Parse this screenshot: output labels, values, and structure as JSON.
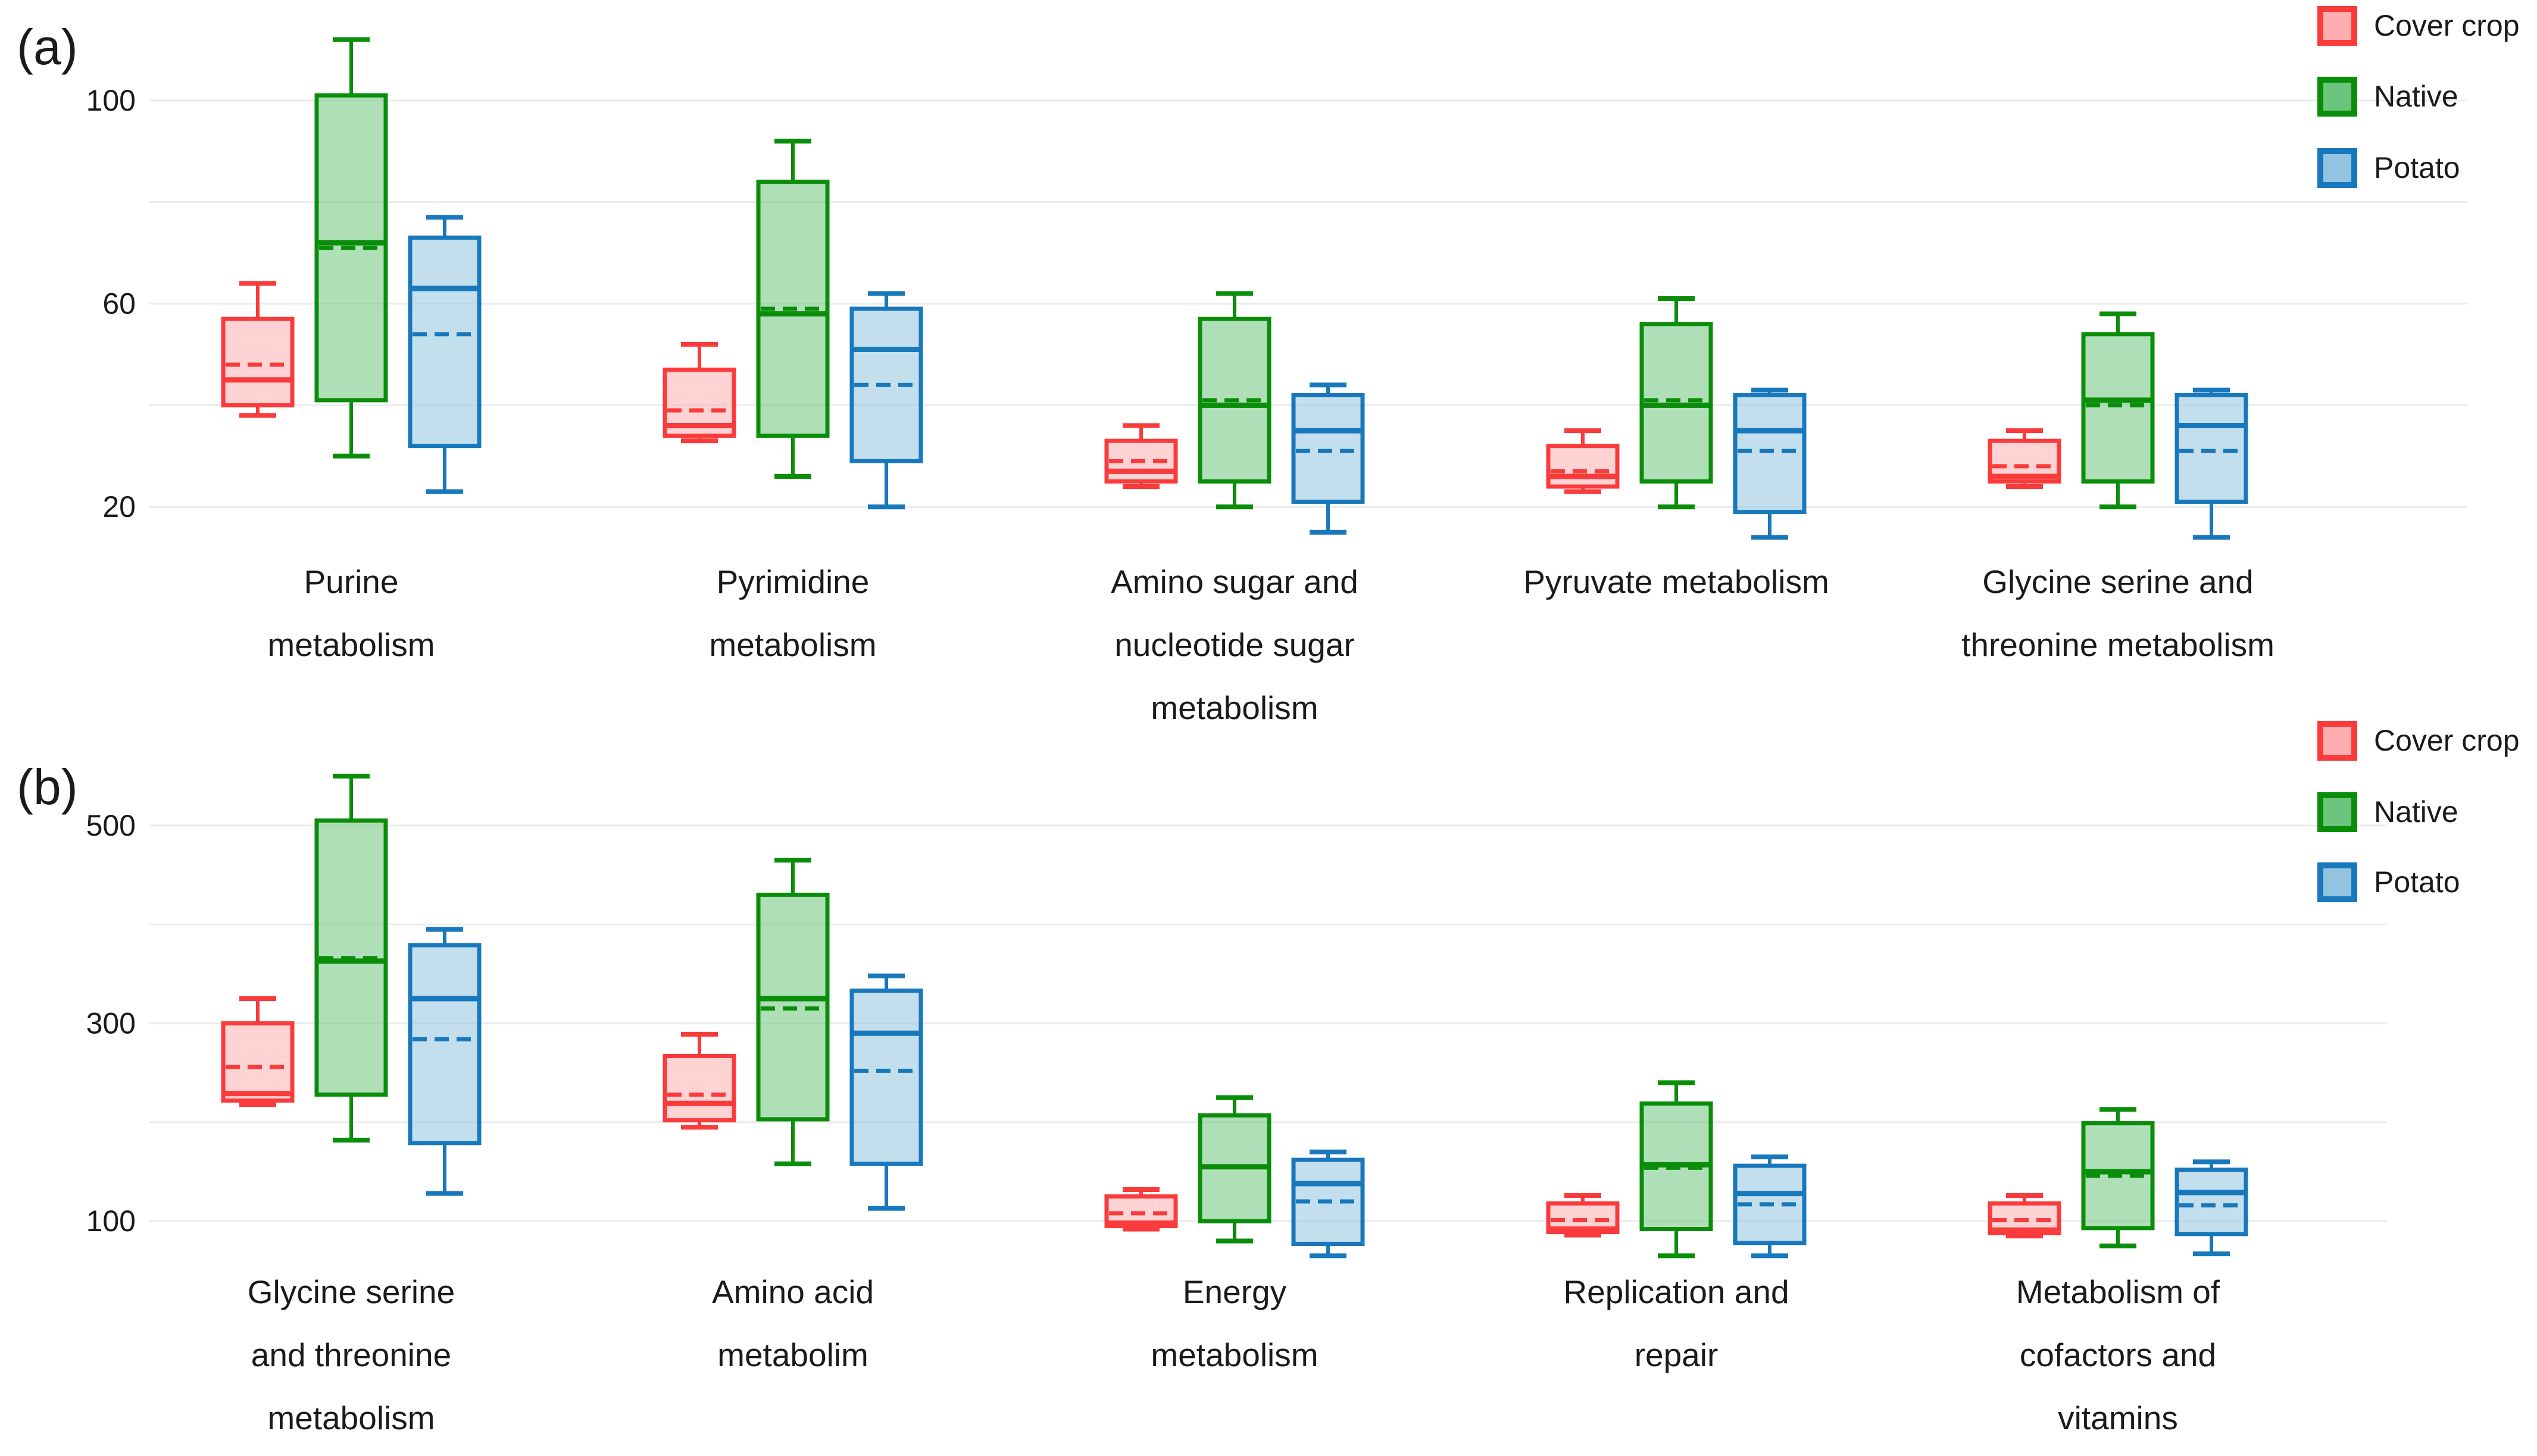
{
  "figure": {
    "background": "#ffffff",
    "gridline_color": "#ebebeb",
    "text_color": "#1a1a1a"
  },
  "legend": {
    "position": "top-right",
    "items": [
      {
        "label": "Cover crop",
        "stroke": "#fa3b3c",
        "fill": "#ffaeb0"
      },
      {
        "label": "Native",
        "stroke": "#0a8e0a",
        "fill": "#6cc57c"
      },
      {
        "label": "Potato",
        "stroke": "#1878bc",
        "fill": "#92c4e0"
      }
    ]
  },
  "chart_data": [
    {
      "type": "box",
      "panel": "(a)",
      "yticks": [
        100,
        60,
        20
      ],
      "gridlines": [
        100,
        80,
        60,
        40,
        20
      ],
      "ylim": [
        8,
        116
      ],
      "grid": true,
      "legend_position": "top-right",
      "categories": [
        [
          "Purine",
          "metabolism"
        ],
        [
          "Pyrimidine",
          "metabolism"
        ],
        [
          "Amino sugar and",
          "nucleotide sugar",
          "metabolism"
        ],
        [
          "Pyruvate metabolism"
        ],
        [
          "Glycine serine and",
          "threonine metabolism"
        ]
      ],
      "series": [
        {
          "name": "Cover crop",
          "boxes": [
            {
              "min": 38,
              "q1": 40,
              "median": 45,
              "mean": 48,
              "q3": 57,
              "max": 64
            },
            {
              "min": 33,
              "q1": 34,
              "median": 36,
              "mean": 39,
              "q3": 47,
              "max": 52
            },
            {
              "min": 24,
              "q1": 25,
              "median": 27,
              "mean": 29,
              "q3": 33,
              "max": 36
            },
            {
              "min": 23,
              "q1": 24,
              "median": 26,
              "mean": 27,
              "q3": 32,
              "max": 35
            },
            {
              "min": 24,
              "q1": 25,
              "median": 26,
              "mean": 28,
              "q3": 33,
              "max": 35
            }
          ]
        },
        {
          "name": "Native",
          "boxes": [
            {
              "min": 30,
              "q1": 41,
              "median": 72,
              "mean": 71,
              "q3": 101,
              "max": 112
            },
            {
              "min": 26,
              "q1": 34,
              "median": 58,
              "mean": 59,
              "q3": 84,
              "max": 92
            },
            {
              "min": 20,
              "q1": 25,
              "median": 40,
              "mean": 41,
              "q3": 57,
              "max": 62
            },
            {
              "min": 20,
              "q1": 25,
              "median": 40,
              "mean": 41,
              "q3": 56,
              "max": 61
            },
            {
              "min": 20,
              "q1": 25,
              "median": 41,
              "mean": 40,
              "q3": 54,
              "max": 58
            }
          ]
        },
        {
          "name": "Potato",
          "boxes": [
            {
              "min": 23,
              "q1": 32,
              "median": 63,
              "mean": 54,
              "q3": 73,
              "max": 77
            },
            {
              "min": 20,
              "q1": 29,
              "median": 51,
              "mean": 44,
              "q3": 59,
              "max": 62
            },
            {
              "min": 15,
              "q1": 21,
              "median": 35,
              "mean": 31,
              "q3": 42,
              "max": 44
            },
            {
              "min": 14,
              "q1": 19,
              "median": 35,
              "mean": 31,
              "q3": 42,
              "max": 43
            },
            {
              "min": 14,
              "q1": 21,
              "median": 36,
              "mean": 31,
              "q3": 42,
              "max": 43
            }
          ]
        }
      ]
    },
    {
      "type": "box",
      "panel": "(b)",
      "yticks": [
        500,
        300,
        100
      ],
      "gridlines": [
        500,
        400,
        300,
        200,
        100
      ],
      "ylim": [
        40,
        580
      ],
      "grid": true,
      "legend_position": "top-right",
      "categories": [
        [
          "Glycine serine",
          "and threonine",
          "metabolism"
        ],
        [
          "Amino acid",
          "metabolim"
        ],
        [
          "Energy",
          "metabolism"
        ],
        [
          "Replication and",
          "repair"
        ],
        [
          "Metabolism of",
          "cofactors and",
          "vitamins"
        ]
      ],
      "series": [
        {
          "name": "Cover crop",
          "boxes": [
            {
              "min": 218,
              "q1": 222,
              "median": 229,
              "mean": 256,
              "q3": 300,
              "max": 325
            },
            {
              "min": 195,
              "q1": 202,
              "median": 219,
              "mean": 228,
              "q3": 267,
              "max": 289
            },
            {
              "min": 92,
              "q1": 95,
              "median": 98,
              "mean": 108,
              "q3": 125,
              "max": 132
            },
            {
              "min": 86,
              "q1": 89,
              "median": 92,
              "mean": 101,
              "q3": 118,
              "max": 126
            },
            {
              "min": 85,
              "q1": 88,
              "median": 91,
              "mean": 101,
              "q3": 118,
              "max": 126
            }
          ]
        },
        {
          "name": "Native",
          "boxes": [
            {
              "min": 182,
              "q1": 228,
              "median": 363,
              "mean": 366,
              "q3": 505,
              "max": 550
            },
            {
              "min": 158,
              "q1": 203,
              "median": 325,
              "mean": 315,
              "q3": 430,
              "max": 465
            },
            {
              "min": 80,
              "q1": 100,
              "median": 155,
              "mean": 155,
              "q3": 207,
              "max": 225
            },
            {
              "min": 65,
              "q1": 92,
              "median": 157,
              "mean": 154,
              "q3": 219,
              "max": 240
            },
            {
              "min": 75,
              "q1": 93,
              "median": 150,
              "mean": 146,
              "q3": 199,
              "max": 213
            }
          ]
        },
        {
          "name": "Potato",
          "boxes": [
            {
              "min": 128,
              "q1": 179,
              "median": 325,
              "mean": 284,
              "q3": 379,
              "max": 395
            },
            {
              "min": 113,
              "q1": 158,
              "median": 290,
              "mean": 252,
              "q3": 333,
              "max": 348
            },
            {
              "min": 65,
              "q1": 77,
              "median": 138,
              "mean": 120,
              "q3": 162,
              "max": 170
            },
            {
              "min": 65,
              "q1": 78,
              "median": 128,
              "mean": 117,
              "q3": 156,
              "max": 165
            },
            {
              "min": 67,
              "q1": 87,
              "median": 129,
              "mean": 116,
              "q3": 152,
              "max": 160
            }
          ]
        }
      ]
    }
  ]
}
